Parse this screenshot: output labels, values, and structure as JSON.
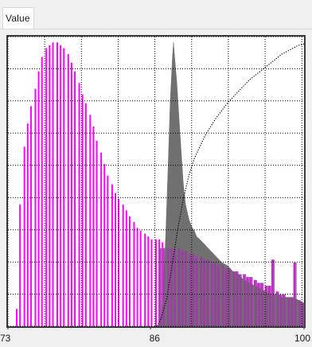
{
  "tab": {
    "label": "Value"
  },
  "chart_data": {
    "type": "bar",
    "xlim": [
      73,
      100
    ],
    "ylim": [
      0,
      1
    ],
    "x_tick_labels": [
      "73",
      "86",
      "100"
    ],
    "x_gridlines": [
      73,
      76.35,
      79.7,
      83.05,
      86.4,
      89.75,
      93.1,
      96.45,
      99.8
    ],
    "y_gridlines": [
      0,
      0.111,
      0.222,
      0.333,
      0.444,
      0.556,
      0.667,
      0.778,
      0.889,
      1.0
    ],
    "grid": true,
    "colors": {
      "series_a": "#ff00ff",
      "series_b": "#707070",
      "overlap": "#9d3aa6",
      "cumulative": "#000000",
      "grid": "#000000"
    },
    "series": [
      {
        "kind": "spikes",
        "color": "#ff00ff",
        "points": [
          [
            73.8,
            0.06
          ],
          [
            74.1,
            0.42
          ],
          [
            74.5,
            0.62
          ],
          [
            74.8,
            0.7
          ],
          [
            75.1,
            0.76
          ],
          [
            75.5,
            0.82
          ],
          [
            75.8,
            0.88
          ],
          [
            76.1,
            0.93
          ],
          [
            76.5,
            0.96
          ],
          [
            76.8,
            0.97
          ],
          [
            77.1,
            0.98
          ],
          [
            77.5,
            0.98
          ],
          [
            77.8,
            0.97
          ],
          [
            78.1,
            0.96
          ],
          [
            78.5,
            0.94
          ],
          [
            78.8,
            0.91
          ],
          [
            79.1,
            0.88
          ],
          [
            79.5,
            0.84
          ],
          [
            79.8,
            0.8
          ],
          [
            80.1,
            0.77
          ],
          [
            80.5,
            0.73
          ],
          [
            80.8,
            0.69
          ],
          [
            81.1,
            0.64
          ],
          [
            81.5,
            0.6
          ],
          [
            81.8,
            0.56
          ],
          [
            82.1,
            0.52
          ],
          [
            82.5,
            0.49
          ],
          [
            82.8,
            0.46
          ],
          [
            83.1,
            0.44
          ],
          [
            83.5,
            0.42
          ],
          [
            83.8,
            0.4
          ],
          [
            84.1,
            0.38
          ],
          [
            84.5,
            0.36
          ],
          [
            84.8,
            0.34
          ],
          [
            85.1,
            0.33
          ],
          [
            85.5,
            0.32
          ],
          [
            85.8,
            0.31
          ],
          [
            86.1,
            0.3
          ],
          [
            86.5,
            0.3
          ],
          [
            86.8,
            0.3
          ],
          [
            87.1,
            0.29
          ],
          [
            87.5,
            0.29
          ],
          [
            87.8,
            0.28
          ],
          [
            88.1,
            0.28
          ],
          [
            88.5,
            0.27
          ],
          [
            88.8,
            0.26
          ],
          [
            89.1,
            0.26
          ],
          [
            89.5,
            0.25
          ],
          [
            89.8,
            0.25
          ],
          [
            90.1,
            0.24
          ],
          [
            90.5,
            0.24
          ],
          [
            90.8,
            0.23
          ],
          [
            91.1,
            0.23
          ],
          [
            91.5,
            0.22
          ],
          [
            91.8,
            0.22
          ],
          [
            92.1,
            0.21
          ],
          [
            92.5,
            0.21
          ],
          [
            92.8,
            0.2
          ],
          [
            93.1,
            0.2
          ],
          [
            93.5,
            0.19
          ],
          [
            93.8,
            0.19
          ],
          [
            94.1,
            0.18
          ],
          [
            94.5,
            0.18
          ],
          [
            94.8,
            0.17
          ],
          [
            95.1,
            0.17
          ],
          [
            95.5,
            0.16
          ],
          [
            95.8,
            0.15
          ],
          [
            96.1,
            0.15
          ],
          [
            96.5,
            0.14
          ],
          [
            96.8,
            0.14
          ],
          [
            97.1,
            0.23
          ],
          [
            97.5,
            0.12
          ],
          [
            97.8,
            0.11
          ],
          [
            98.1,
            0.11
          ],
          [
            98.5,
            0.1
          ],
          [
            98.8,
            0.1
          ],
          [
            99.1,
            0.22
          ],
          [
            99.5,
            0.09
          ],
          [
            99.8,
            0.08
          ]
        ]
      },
      {
        "kind": "filled",
        "color": "#707070",
        "points": [
          [
            86.6,
            0.0
          ],
          [
            86.8,
            0.01
          ],
          [
            87.0,
            0.05
          ],
          [
            87.2,
            0.15
          ],
          [
            87.4,
            0.33
          ],
          [
            87.6,
            0.55
          ],
          [
            87.8,
            0.78
          ],
          [
            88.0,
            0.93
          ],
          [
            88.1,
            0.98
          ],
          [
            88.2,
            0.93
          ],
          [
            88.4,
            0.84
          ],
          [
            88.6,
            0.72
          ],
          [
            88.8,
            0.6
          ],
          [
            89.0,
            0.49
          ],
          [
            89.2,
            0.42
          ],
          [
            89.5,
            0.37
          ],
          [
            89.8,
            0.34
          ],
          [
            90.0,
            0.33
          ],
          [
            90.2,
            0.31
          ],
          [
            90.5,
            0.3
          ],
          [
            91.0,
            0.28
          ],
          [
            91.5,
            0.26
          ],
          [
            92.0,
            0.24
          ],
          [
            92.5,
            0.22
          ],
          [
            93.0,
            0.21
          ],
          [
            93.5,
            0.19
          ],
          [
            94.0,
            0.18
          ],
          [
            94.5,
            0.16
          ],
          [
            95.0,
            0.15
          ],
          [
            95.5,
            0.14
          ],
          [
            96.0,
            0.13
          ],
          [
            96.5,
            0.12
          ],
          [
            97.0,
            0.11
          ],
          [
            97.5,
            0.11
          ],
          [
            98.0,
            0.1
          ],
          [
            98.5,
            0.1
          ],
          [
            99.0,
            0.1
          ],
          [
            99.5,
            0.09
          ],
          [
            100.0,
            0.08
          ]
        ]
      },
      {
        "kind": "cumulative",
        "color": "#000000",
        "points": [
          [
            86.6,
            0.0
          ],
          [
            87.0,
            0.03
          ],
          [
            87.5,
            0.1
          ],
          [
            88.0,
            0.22
          ],
          [
            88.5,
            0.34
          ],
          [
            89.0,
            0.44
          ],
          [
            89.5,
            0.52
          ],
          [
            90.0,
            0.58
          ],
          [
            90.5,
            0.62
          ],
          [
            91.0,
            0.66
          ],
          [
            91.5,
            0.69
          ],
          [
            92.0,
            0.72
          ],
          [
            92.5,
            0.745
          ],
          [
            93.0,
            0.77
          ],
          [
            93.5,
            0.79
          ],
          [
            94.0,
            0.81
          ],
          [
            94.5,
            0.83
          ],
          [
            95.0,
            0.85
          ],
          [
            95.5,
            0.865
          ],
          [
            96.0,
            0.88
          ],
          [
            96.5,
            0.895
          ],
          [
            97.0,
            0.91
          ],
          [
            97.5,
            0.925
          ],
          [
            98.0,
            0.94
          ],
          [
            98.5,
            0.95
          ],
          [
            99.0,
            0.96
          ],
          [
            99.5,
            0.97
          ],
          [
            100.0,
            0.975
          ]
        ]
      }
    ]
  }
}
